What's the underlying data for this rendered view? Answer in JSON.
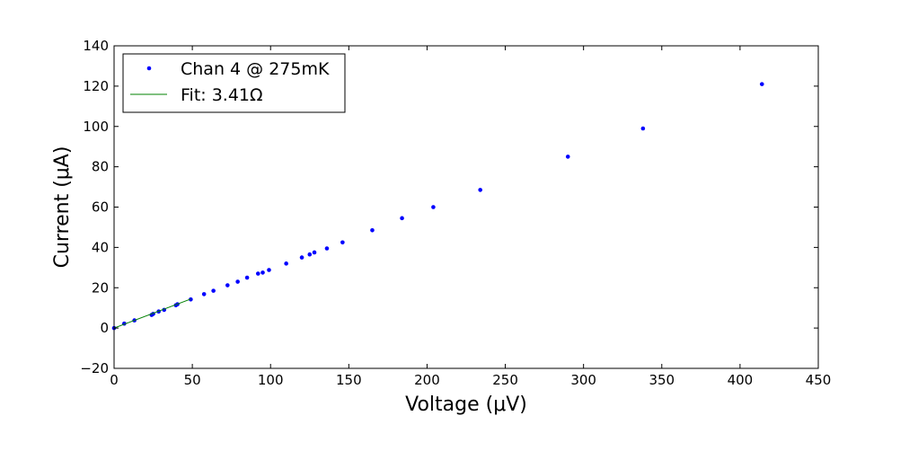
{
  "chart_data": {
    "type": "scatter",
    "xlabel": "Voltage (μV)",
    "ylabel": "Current (μA)",
    "xlim": [
      0,
      450
    ],
    "ylim": [
      -20,
      140
    ],
    "xticks": [
      "0",
      "50",
      "100",
      "150",
      "200",
      "250",
      "300",
      "350",
      "400",
      "450"
    ],
    "yticks": [
      "−20",
      "0",
      "20",
      "40",
      "60",
      "80",
      "100",
      "120",
      "140"
    ],
    "grid": false,
    "legend_position": "top-left",
    "series": [
      {
        "name": "Chan 4 @ 275mK",
        "kind": "points",
        "color": "#0000ff",
        "points": [
          [
            0,
            0
          ],
          [
            6.5,
            2.2
          ],
          [
            13,
            3.8
          ],
          [
            24,
            6.5
          ],
          [
            25,
            7.0
          ],
          [
            28.5,
            8.2
          ],
          [
            32,
            9.0
          ],
          [
            39.5,
            11.3
          ],
          [
            40.5,
            11.8
          ],
          [
            49,
            14.2
          ],
          [
            57.5,
            16.8
          ],
          [
            63.5,
            18.5
          ],
          [
            72.5,
            21.2
          ],
          [
            79,
            23.0
          ],
          [
            85,
            25.0
          ],
          [
            92,
            27.0
          ],
          [
            95,
            27.5
          ],
          [
            99,
            28.8
          ],
          [
            110,
            32.0
          ],
          [
            120,
            35.0
          ],
          [
            125,
            36.5
          ],
          [
            128,
            37.5
          ],
          [
            136,
            39.5
          ],
          [
            146,
            42.5
          ],
          [
            165,
            48.5
          ],
          [
            184,
            54.5
          ],
          [
            204,
            60.0
          ],
          [
            234,
            68.5
          ],
          [
            290,
            85.0
          ],
          [
            338,
            99.0
          ],
          [
            414,
            121.0
          ]
        ]
      },
      {
        "name": "Fit: 3.41Ω",
        "kind": "line",
        "color": "#008000",
        "points": [
          [
            0,
            0
          ],
          [
            49,
            14.4
          ]
        ]
      }
    ]
  }
}
